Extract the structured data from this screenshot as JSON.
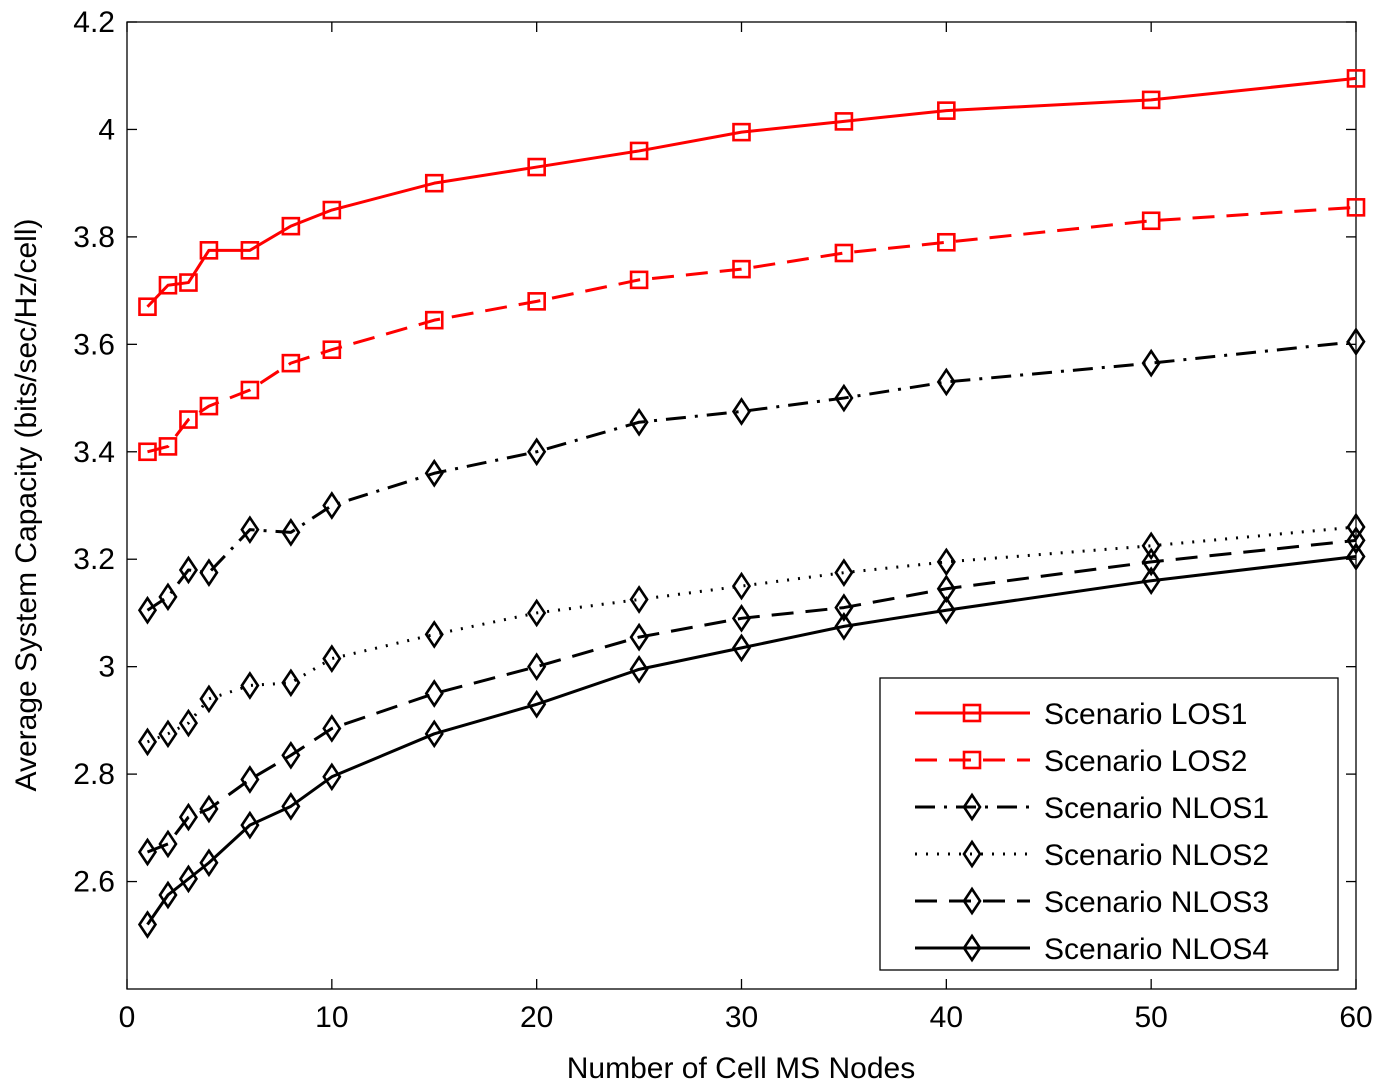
{
  "chart_data": {
    "type": "line",
    "title": "",
    "xlabel": "Number of Cell MS Nodes",
    "ylabel": "Average System Capacity (bits/sec/Hz/cell)",
    "xlim": [
      0,
      60
    ],
    "ylim": [
      2.4,
      4.2
    ],
    "xticks": [
      0,
      10,
      20,
      30,
      40,
      50,
      60
    ],
    "yticks": [
      2.6,
      2.8,
      3.0,
      3.2,
      3.4,
      3.6,
      3.8,
      4.0,
      4.2
    ],
    "xtick_labels": [
      "0",
      "10",
      "20",
      "30",
      "40",
      "50",
      "60"
    ],
    "ytick_labels": [
      "2.6",
      "2.8",
      "3",
      "3.2",
      "3.4",
      "3.6",
      "3.8",
      "4",
      "4.2"
    ],
    "grid": false,
    "legend_position": "bottom-right",
    "x": [
      1,
      2,
      3,
      4,
      6,
      8,
      10,
      15,
      20,
      25,
      30,
      35,
      40,
      50,
      60
    ],
    "series": [
      {
        "name": "Scenario LOS1",
        "color": "#ff0000",
        "line": "solid",
        "marker": "square",
        "values": [
          3.67,
          3.71,
          3.715,
          3.775,
          3.775,
          3.82,
          3.85,
          3.9,
          3.93,
          3.96,
          3.995,
          4.015,
          4.035,
          4.055,
          4.095
        ]
      },
      {
        "name": "Scenario LOS2",
        "color": "#ff0000",
        "line": "dashed",
        "marker": "square",
        "values": [
          3.4,
          3.41,
          3.46,
          3.485,
          3.515,
          3.565,
          3.59,
          3.645,
          3.68,
          3.72,
          3.74,
          3.77,
          3.79,
          3.83,
          3.855
        ]
      },
      {
        "name": "Scenario NLOS1",
        "color": "#000000",
        "line": "dashdot",
        "marker": "diamond",
        "values": [
          3.105,
          3.13,
          3.18,
          3.175,
          3.255,
          3.25,
          3.3,
          3.36,
          3.4,
          3.455,
          3.475,
          3.5,
          3.53,
          3.565,
          3.605
        ]
      },
      {
        "name": "Scenario NLOS2",
        "color": "#000000",
        "line": "dotted",
        "marker": "diamond",
        "values": [
          2.86,
          2.875,
          2.895,
          2.94,
          2.965,
          2.97,
          3.015,
          3.06,
          3.1,
          3.125,
          3.15,
          3.175,
          3.195,
          3.225,
          3.26
        ]
      },
      {
        "name": "Scenario NLOS3",
        "color": "#000000",
        "line": "dashed",
        "marker": "diamond",
        "values": [
          2.655,
          2.67,
          2.72,
          2.735,
          2.79,
          2.835,
          2.885,
          2.95,
          3.0,
          3.055,
          3.09,
          3.11,
          3.145,
          3.195,
          3.235
        ]
      },
      {
        "name": "Scenario NLOS4",
        "color": "#000000",
        "line": "solid",
        "marker": "diamond",
        "values": [
          2.52,
          2.575,
          2.605,
          2.635,
          2.705,
          2.74,
          2.795,
          2.875,
          2.93,
          2.995,
          3.035,
          3.075,
          3.105,
          3.16,
          3.205
        ]
      }
    ]
  }
}
